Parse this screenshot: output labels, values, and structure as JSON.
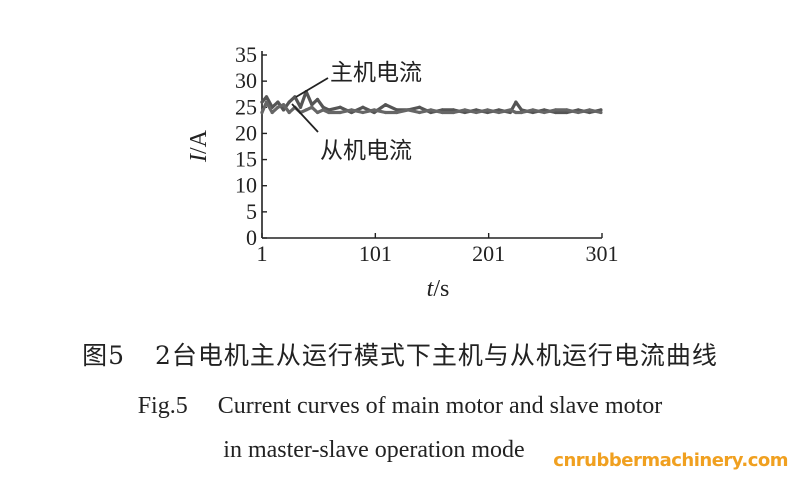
{
  "chart_data": {
    "type": "line",
    "title": "",
    "xlabel_italic": "t",
    "xlabel_unit": "/s",
    "ylabel_italic": "I",
    "ylabel_unit": "/A",
    "xlim": [
      1,
      301
    ],
    "ylim": [
      0,
      35
    ],
    "xticks": [
      1,
      101,
      201,
      301
    ],
    "yticks": [
      0,
      5,
      10,
      15,
      20,
      25,
      30,
      35
    ],
    "grid": false,
    "series": [
      {
        "name": "主机电流",
        "color": "#555555",
        "x": [
          1,
          5,
          10,
          15,
          20,
          25,
          30,
          35,
          40,
          45,
          50,
          55,
          60,
          70,
          80,
          90,
          100,
          110,
          120,
          130,
          140,
          150,
          160,
          170,
          180,
          190,
          200,
          210,
          220,
          225,
          230,
          240,
          250,
          260,
          270,
          280,
          290,
          300
        ],
        "values": [
          26,
          27,
          25,
          26,
          24.5,
          26,
          27,
          25,
          28,
          25.5,
          26.5,
          25,
          24.5,
          25,
          24,
          25,
          24,
          25.5,
          24.5,
          24.5,
          25,
          24,
          24.5,
          24.5,
          24,
          24.5,
          24,
          24.5,
          24,
          26,
          24.5,
          24,
          24.5,
          24,
          24,
          24.5,
          24,
          24.5
        ]
      },
      {
        "name": "从机电流",
        "color": "#666666",
        "x": [
          1,
          5,
          10,
          15,
          20,
          25,
          30,
          35,
          40,
          45,
          50,
          55,
          60,
          70,
          80,
          90,
          100,
          110,
          120,
          130,
          140,
          150,
          160,
          170,
          180,
          190,
          200,
          210,
          220,
          225,
          230,
          240,
          250,
          260,
          270,
          280,
          290,
          300
        ],
        "values": [
          24,
          26,
          24,
          25,
          25.5,
          24,
          25,
          24,
          24.5,
          25,
          24,
          24.5,
          24,
          24,
          24.5,
          24,
          24.5,
          24,
          24,
          24.5,
          24,
          24.5,
          24,
          24,
          24.5,
          24,
          24.5,
          24,
          24.5,
          24,
          24,
          24.5,
          24,
          24.5,
          24.5,
          24,
          24.5,
          24
        ]
      }
    ],
    "annotations": [
      {
        "text": "主机电流"
      },
      {
        "text": "从机电流"
      }
    ]
  },
  "caption": {
    "cn_label": "图5",
    "cn_text": "2台电机主从运行模式下主机与从机运行电流曲线",
    "en_label": "Fig.5",
    "en_text_line1": "Current curves of main motor and slave motor",
    "en_text_line2": "in master-slave operation mode"
  },
  "watermark": "cnrubbermachinery.com"
}
